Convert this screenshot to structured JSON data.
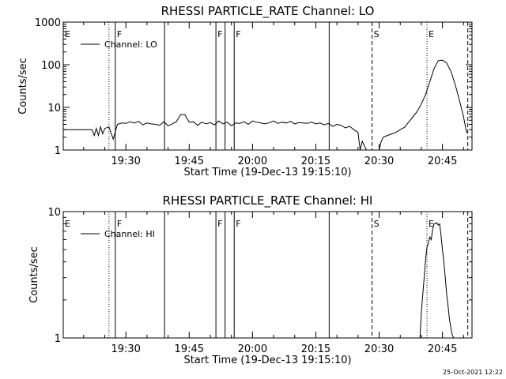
{
  "chart_data": [
    {
      "type": "line",
      "title": "RHESSI PARTICLE_RATE Channel: LO",
      "xlabel": "Start Time (19-Dec-13 19:15:10)",
      "ylabel": "Counts/sec",
      "yscale": "log",
      "ylim": [
        1,
        1000
      ],
      "xlim": [
        "19:15:10",
        "20:52:00"
      ],
      "x_ticks": [
        "19:30",
        "19:45",
        "20:00",
        "20:15",
        "20:30",
        "20:45"
      ],
      "y_ticks": [
        "1",
        "10",
        "100",
        "1000"
      ],
      "legend": "top-left",
      "series": [
        {
          "name": "Channel: LO",
          "x": [
            "19:15:10",
            "19:22:00",
            "19:22:30",
            "19:23:00",
            "19:23:30",
            "19:24:00",
            "19:24:30",
            "19:25:00",
            "19:26:00",
            "19:27:00",
            "19:28:00",
            "19:29:00",
            "19:30:00",
            "19:31:00",
            "19:32:00",
            "19:33:00",
            "19:34:00",
            "19:35:00",
            "19:36:00",
            "19:37:00",
            "19:38:00",
            "19:39:00",
            "19:40:00",
            "19:41:00",
            "19:42:00",
            "19:43:00",
            "19:44:00",
            "19:45:00",
            "19:46:00",
            "19:47:00",
            "19:48:00",
            "19:49:00",
            "19:50:00",
            "19:51:00",
            "19:52:00",
            "19:53:00",
            "19:54:00",
            "19:55:00",
            "19:56:00",
            "19:57:00",
            "19:58:00",
            "19:59:00",
            "20:00:00",
            "20:01:00",
            "20:02:00",
            "20:03:00",
            "20:04:00",
            "20:05:00",
            "20:06:00",
            "20:07:00",
            "20:08:00",
            "20:09:00",
            "20:10:00",
            "20:11:00",
            "20:12:00",
            "20:13:00",
            "20:14:00",
            "20:15:00",
            "20:16:00",
            "20:17:00",
            "20:18:00",
            "20:19:00",
            "20:20:00",
            "20:21:00",
            "20:22:00",
            "20:23:00",
            "20:24:00",
            "20:25:00",
            "20:25:30",
            "20:26:00",
            "20:27:00",
            "20:28:00",
            "20:29:00",
            "20:30:00",
            "20:30:30",
            "20:31:00",
            "20:32:00",
            "20:33:00",
            "20:34:00",
            "20:35:00",
            "20:36:00",
            "20:37:00",
            "20:38:00",
            "20:39:00",
            "20:40:00",
            "20:41:00",
            "20:42:00",
            "20:43:00",
            "20:44:00",
            "20:45:00",
            "20:46:00",
            "20:47:00",
            "20:48:00",
            "20:49:00",
            "20:50:00",
            "20:50:45"
          ],
          "values": [
            3,
            3,
            2.2,
            3.2,
            2.2,
            3.5,
            2.4,
            3.2,
            3.5,
            1.8,
            4,
            4.3,
            4.2,
            4.6,
            4.3,
            4.7,
            3.9,
            4.3,
            4.1,
            4,
            3.8,
            4.6,
            3.7,
            4.1,
            4.7,
            6.8,
            6.7,
            4.5,
            4.6,
            3.8,
            4.5,
            4.1,
            4.4,
            3.9,
            4.8,
            4.1,
            4.5,
            3.7,
            4.3,
            4.2,
            4.6,
            4,
            4.8,
            4.5,
            4.3,
            4.1,
            4.4,
            4.8,
            4.2,
            4.5,
            4.3,
            4.7,
            4.1,
            4.4,
            4.3,
            4.2,
            4.5,
            4.1,
            4.3,
            3.9,
            4.2,
            3.6,
            4,
            3.8,
            3.3,
            3.6,
            3,
            2.6,
            1,
            1.6,
            1,
            1,
            1,
            1,
            1.6,
            2,
            2.2,
            2.4,
            2.6,
            3,
            3.4,
            4.5,
            6,
            8,
            12,
            20,
            40,
            80,
            125,
            128,
            110,
            70,
            35,
            15,
            6,
            2.5
          ]
        }
      ],
      "markers": [
        {
          "label": "E",
          "x": "19:15:10",
          "style": "dotted"
        },
        {
          "label": "",
          "x": "19:26:00",
          "style": "dotted"
        },
        {
          "label": "F",
          "x": "19:27:30",
          "style": "solid"
        },
        {
          "label": "",
          "x": "19:39:10",
          "style": "solid"
        },
        {
          "label": "F",
          "x": "19:51:20",
          "style": "solid"
        },
        {
          "label": "",
          "x": "19:53:30",
          "style": "solid"
        },
        {
          "label": "F",
          "x": "19:55:40",
          "style": "solid"
        },
        {
          "label": "",
          "x": "20:18:10",
          "style": "solid"
        },
        {
          "label": "S",
          "x": "20:28:20",
          "style": "dashed"
        },
        {
          "label": "E",
          "x": "20:41:20",
          "style": "dotted"
        },
        {
          "label": "",
          "x": "20:51:00",
          "style": "dashed"
        }
      ]
    },
    {
      "type": "line",
      "title": "RHESSI PARTICLE_RATE Channel: HI",
      "xlabel": "Start Time (19-Dec-13 19:15:10)",
      "ylabel": "Counts/sec",
      "yscale": "log",
      "ylim": [
        1,
        10
      ],
      "xlim": [
        "19:15:10",
        "20:52:00"
      ],
      "x_ticks": [
        "19:30",
        "19:45",
        "20:00",
        "20:15",
        "20:30",
        "20:45"
      ],
      "y_ticks": [
        "1",
        "10"
      ],
      "legend": "top-left",
      "series": [
        {
          "name": "Channel: HI",
          "x": [
            "20:39:40",
            "20:40:00",
            "20:40:20",
            "20:40:40",
            "20:41:00",
            "20:41:20",
            "20:41:40",
            "20:42:00",
            "20:42:20",
            "20:42:40",
            "20:43:00",
            "20:43:20",
            "20:43:40",
            "20:44:00",
            "20:44:20",
            "20:44:40",
            "20:45:00",
            "20:45:20",
            "20:45:40",
            "20:46:00",
            "20:46:20",
            "20:46:40",
            "20:47:00",
            "20:47:20",
            "20:47:40"
          ],
          "values": [
            1,
            1.6,
            2.2,
            3,
            4.2,
            5.2,
            5.6,
            6.3,
            6,
            7.2,
            8,
            8,
            8.2,
            7.8,
            8,
            6.5,
            5,
            4,
            3,
            2.2,
            1.8,
            1.4,
            1.2,
            1.05,
            1
          ]
        }
      ],
      "markers": [
        {
          "label": "E",
          "x": "19:15:10",
          "style": "dotted"
        },
        {
          "label": "",
          "x": "19:26:00",
          "style": "dotted"
        },
        {
          "label": "F",
          "x": "19:27:30",
          "style": "solid"
        },
        {
          "label": "",
          "x": "19:39:10",
          "style": "solid"
        },
        {
          "label": "F",
          "x": "19:51:20",
          "style": "solid"
        },
        {
          "label": "",
          "x": "19:53:30",
          "style": "solid"
        },
        {
          "label": "F",
          "x": "19:55:40",
          "style": "solid"
        },
        {
          "label": "",
          "x": "20:18:10",
          "style": "solid"
        },
        {
          "label": "S",
          "x": "20:28:20",
          "style": "dashed"
        },
        {
          "label": "E",
          "x": "20:41:20",
          "style": "dotted"
        },
        {
          "label": "",
          "x": "20:51:00",
          "style": "dashed"
        }
      ]
    }
  ],
  "footer": {
    "timestamp": "25-Oct-2021 12:22"
  }
}
